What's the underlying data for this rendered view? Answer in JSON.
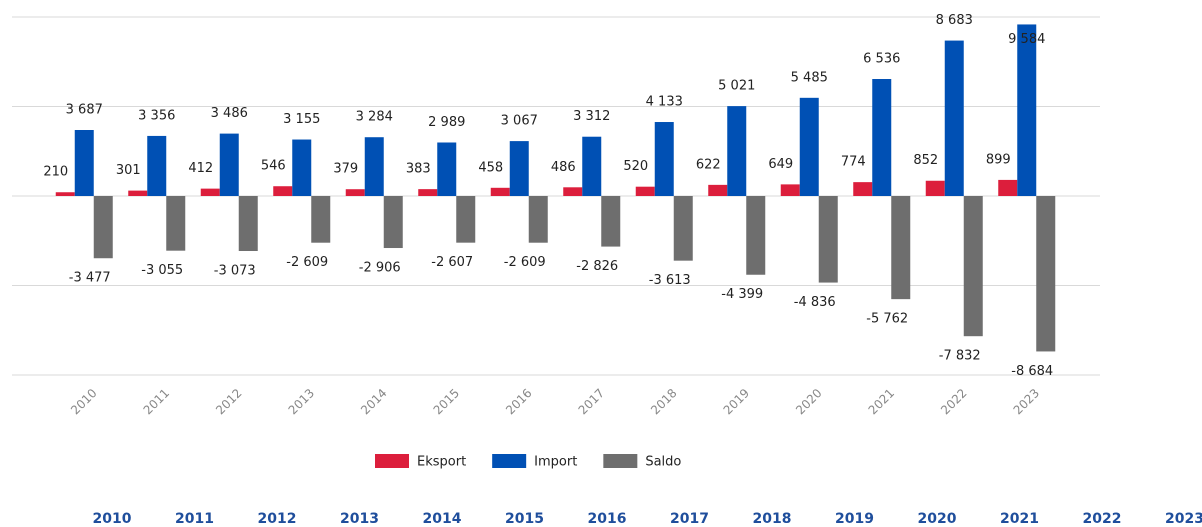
{
  "chart_data": {
    "type": "bar",
    "categories": [
      "2010",
      "2011",
      "2012",
      "2013",
      "2014",
      "2015",
      "2016",
      "2017",
      "2018",
      "2019",
      "2020",
      "2021",
      "2022",
      "2023"
    ],
    "series": [
      {
        "name": "Eksport",
        "color": "#dc1e3c",
        "values": [
          210,
          301,
          412,
          546,
          379,
          383,
          458,
          486,
          520,
          622,
          649,
          774,
          852,
          899
        ]
      },
      {
        "name": "Import",
        "color": "#0050b4",
        "values": [
          3687,
          3356,
          3486,
          3155,
          3284,
          2989,
          3067,
          3312,
          4133,
          5021,
          5485,
          6536,
          8683,
          9584
        ],
        "value_labels": [
          "3 687",
          "3 356",
          "3 486",
          "3 155",
          "3 284",
          "2 989",
          "3 067",
          "3 312",
          "4 133",
          "5 021",
          "5 485",
          "6 536",
          "8 683",
          "9 584"
        ]
      },
      {
        "name": "Saldo",
        "color": "#6e6e6e",
        "values": [
          -3477,
          -3055,
          -3073,
          -2609,
          -2906,
          -2607,
          -2609,
          -2826,
          -3613,
          -4399,
          -4836,
          -5762,
          -7832,
          -8684
        ],
        "value_labels": [
          "-3 477",
          "-3 055",
          "-3 073",
          "-2 609",
          "-2 906",
          "-2 607",
          "-2 609",
          "-2 826",
          "-3 613",
          "-4 399",
          "-4 836",
          "-5 762",
          "-7 832",
          "-8 684"
        ]
      }
    ],
    "ylim": [
      -10000,
      10000
    ],
    "yticks": [
      -10000,
      -5000,
      0,
      5000,
      10000
    ],
    "grid": true,
    "footer_years": [
      "2010",
      "2011",
      "2012",
      "2013",
      "2014",
      "2015",
      "2016",
      "2017",
      "2018",
      "2019",
      "2020",
      "2021",
      "2022",
      "2023"
    ]
  }
}
